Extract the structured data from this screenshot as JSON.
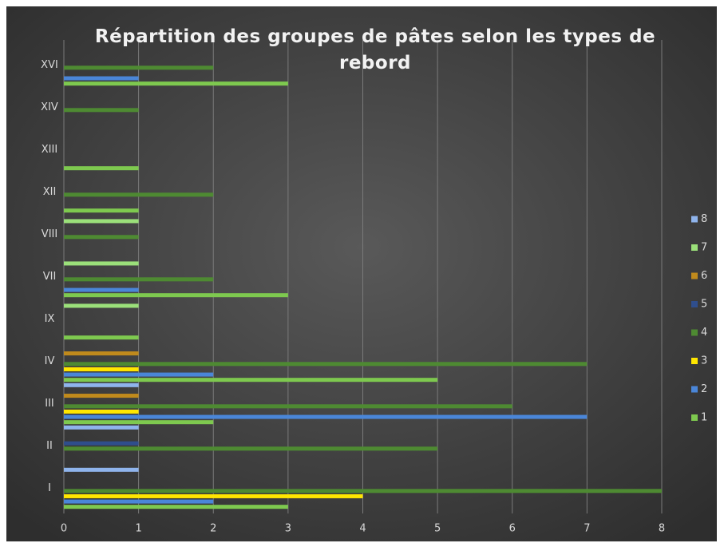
{
  "chart_data": {
    "type": "hbar",
    "title": "Répartition des groupes de pâtes selon les types de rebord",
    "categories": [
      "I",
      "II",
      "III",
      "IV",
      "IX",
      "VII",
      "VIII",
      "XII",
      "XIII",
      "XIV",
      "XVI"
    ],
    "series": [
      {
        "name": "1",
        "color": "#7ec94f",
        "values": [
          3,
          0,
          2,
          5,
          1,
          3,
          0,
          1,
          1,
          0,
          3
        ]
      },
      {
        "name": "2",
        "color": "#4a86d8",
        "values": [
          2,
          0,
          7,
          2,
          0,
          1,
          0,
          0,
          0,
          0,
          1
        ]
      },
      {
        "name": "3",
        "color": "#ffe600",
        "values": [
          4,
          0,
          1,
          1,
          0,
          0,
          0,
          0,
          0,
          0,
          0
        ]
      },
      {
        "name": "4",
        "color": "#4e8a32",
        "values": [
          8,
          5,
          6,
          7,
          0,
          2,
          1,
          2,
          0,
          1,
          2
        ]
      },
      {
        "name": "5",
        "color": "#2f4e8c",
        "values": [
          0,
          1,
          0,
          0,
          0,
          0,
          0,
          0,
          0,
          0,
          0
        ]
      },
      {
        "name": "6",
        "color": "#c08a1c",
        "values": [
          0,
          0,
          1,
          1,
          0,
          0,
          0,
          0,
          0,
          0,
          0
        ]
      },
      {
        "name": "7",
        "color": "#9be07a",
        "values": [
          0,
          0,
          0,
          0,
          1,
          1,
          1,
          0,
          0,
          0,
          0
        ]
      },
      {
        "name": "8",
        "color": "#8fb4ec",
        "values": [
          1,
          1,
          1,
          0,
          0,
          0,
          0,
          0,
          0,
          0,
          0
        ]
      }
    ],
    "xlim": [
      0,
      8
    ],
    "xticks": [
      0,
      1,
      2,
      3,
      4,
      5,
      6,
      7,
      8
    ],
    "grid": true,
    "legend": "right"
  }
}
